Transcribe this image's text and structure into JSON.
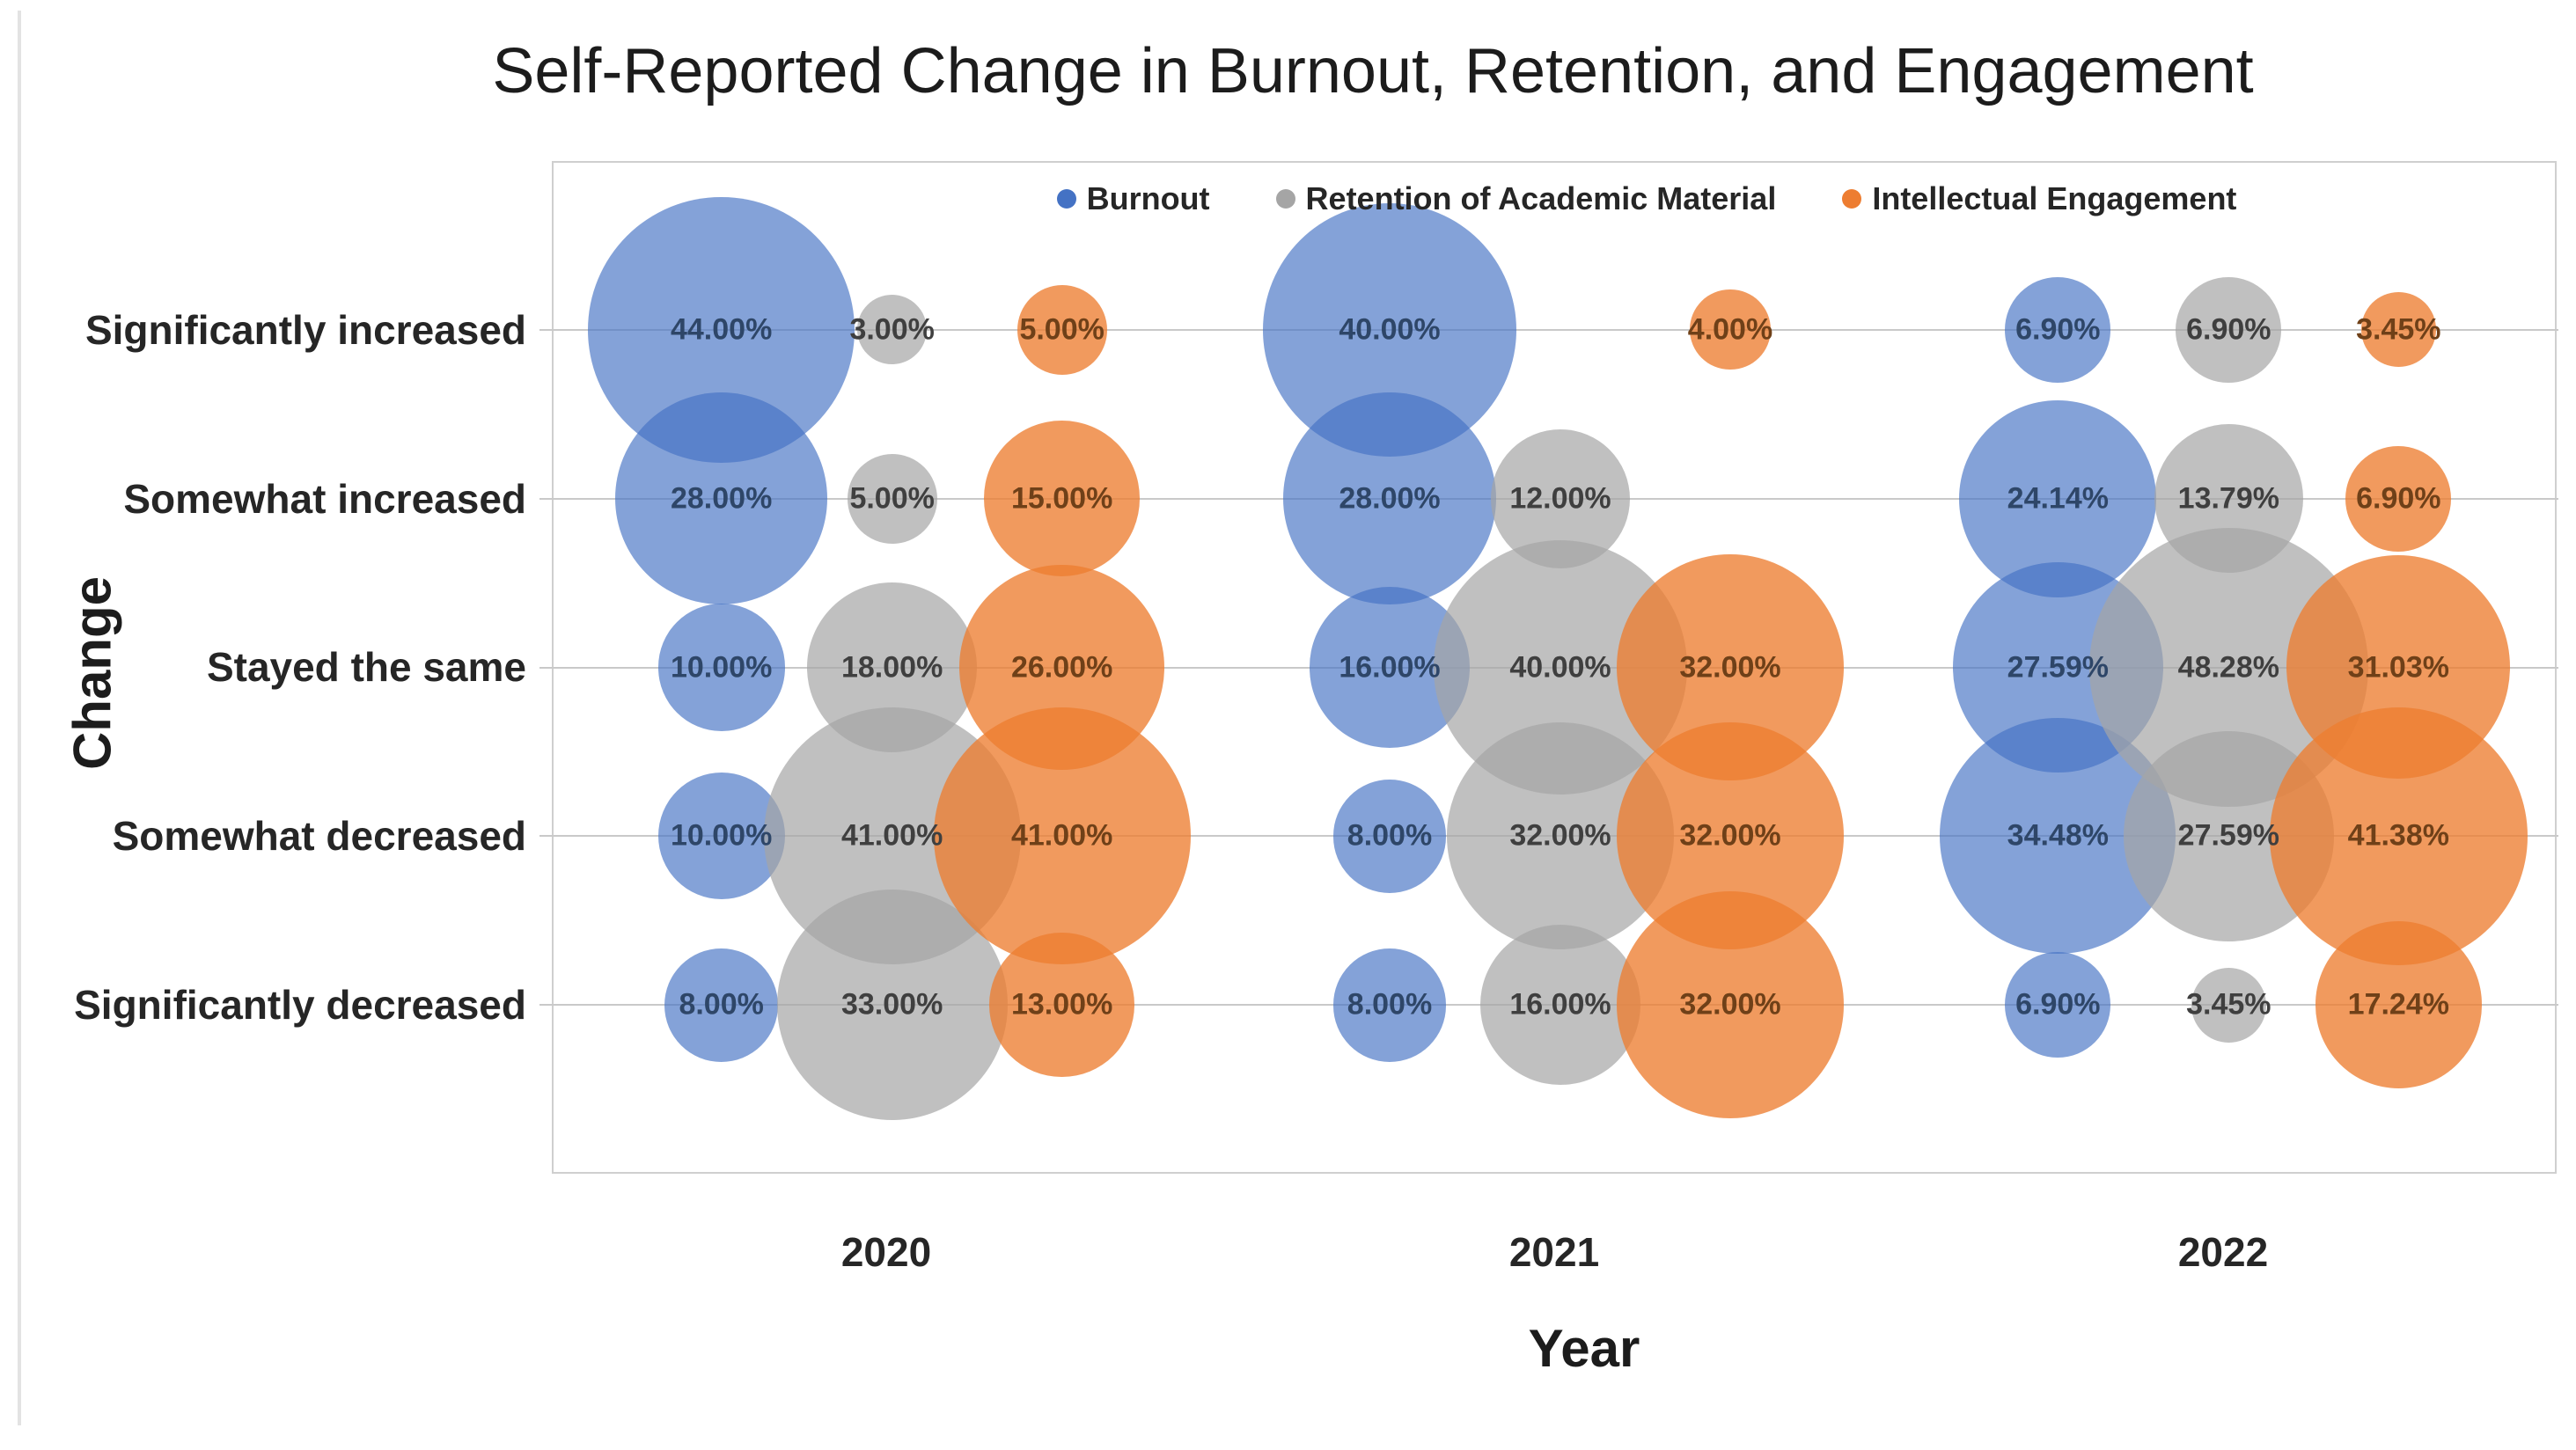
{
  "chart_data": {
    "type": "scatter",
    "variant": "bubble",
    "title": "Self-Reported Change in Burnout, Retention, and Engagement",
    "xlabel": "Year",
    "ylabel": "Change",
    "x_categories": [
      "2020",
      "2021",
      "2022"
    ],
    "y_categories": [
      "Significantly increased",
      "Somewhat increased",
      "Stayed the same",
      "Somewhat decreased",
      "Significantly decreased"
    ],
    "legend_position": "top-center",
    "grid": true,
    "value_unit": "percent",
    "label_format": "0.00%",
    "gridline_color": "#c9c9c9",
    "plot_border_color": "#cfcfcf",
    "series": [
      {
        "name": "Burnout",
        "color": "#4472C4",
        "fill_rgba": "rgba(68,114,196,0.66)",
        "label_color": "#2e4668",
        "values_by_year": {
          "2020": [
            44.0,
            28.0,
            10.0,
            10.0,
            8.0
          ],
          "2021": [
            40.0,
            28.0,
            16.0,
            8.0,
            8.0
          ],
          "2022": [
            6.9,
            24.14,
            27.59,
            34.48,
            6.9
          ]
        }
      },
      {
        "name": "Retention of Academic Material",
        "color": "#A5A5A5",
        "fill_rgba": "rgba(165,165,165,0.70)",
        "label_color": "#3f3f3f",
        "values_by_year": {
          "2020": [
            3.0,
            5.0,
            18.0,
            41.0,
            33.0
          ],
          "2021": [
            null,
            12.0,
            40.0,
            32.0,
            16.0
          ],
          "2022": [
            6.9,
            13.79,
            48.28,
            27.59,
            3.45
          ]
        }
      },
      {
        "name": "Intellectual Engagement",
        "color": "#ED7D31",
        "fill_rgba": "rgba(237,125,49,0.78)",
        "label_color": "#6f4018",
        "values_by_year": {
          "2020": [
            5.0,
            15.0,
            26.0,
            41.0,
            13.0
          ],
          "2021": [
            4.0,
            null,
            32.0,
            32.0,
            32.0
          ],
          "2022": [
            3.45,
            6.9,
            31.03,
            41.38,
            17.24
          ]
        }
      }
    ]
  }
}
